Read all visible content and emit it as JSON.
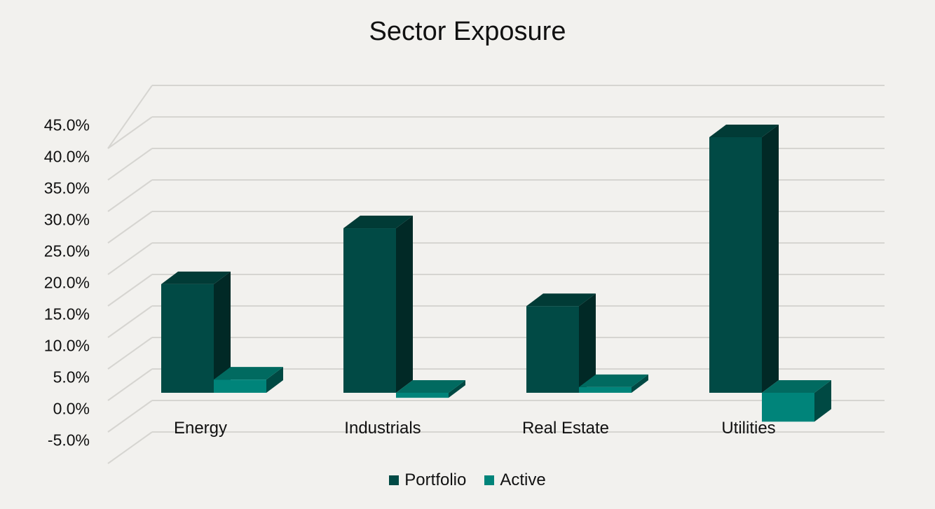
{
  "chart_data": {
    "type": "bar",
    "title": "Sector Exposure",
    "xlabel": "",
    "ylabel": "",
    "categories": [
      "Energy",
      "Industrials",
      "Real Estate",
      "Utilities"
    ],
    "series": [
      {
        "name": "Portfolio",
        "color": "#014a45",
        "values": [
          17.3,
          26.2,
          13.8,
          40.7
        ]
      },
      {
        "name": "Active",
        "color": "#00847a",
        "values": [
          2.1,
          -0.8,
          0.9,
          -4.6
        ]
      }
    ],
    "ylim": [
      -5,
      45
    ],
    "y_ticks": [
      "-5.0%",
      "0.0%",
      "5.0%",
      "10.0%",
      "15.0%",
      "20.0%",
      "25.0%",
      "30.0%",
      "35.0%",
      "40.0%",
      "45.0%"
    ],
    "grid": true,
    "legend_position": "bottom",
    "style": "3d"
  }
}
